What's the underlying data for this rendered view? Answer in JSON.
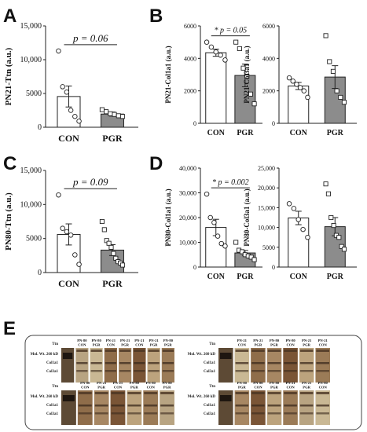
{
  "panel_letters": {
    "A": "A",
    "B": "B",
    "C": "C",
    "D": "D",
    "E": "E"
  },
  "chart_data": [
    {
      "id": "A",
      "type": "bar",
      "categories": [
        "CON",
        "PGR"
      ],
      "ylabel": "PN21-Ttn (a.u.)",
      "ylim": [
        0,
        15000
      ],
      "yticks": [
        0,
        5000,
        10000,
        15000
      ],
      "yticklabels": [
        "0",
        "5000",
        "10,000",
        "15,000"
      ],
      "values": [
        4550,
        1950
      ],
      "errors": [
        1550,
        300
      ],
      "points": [
        [
          11300,
          6000,
          5200,
          2500,
          1600,
          900
        ],
        [
          2600,
          2300,
          2000,
          1900,
          1700,
          1600
        ]
      ],
      "annotation": "p = 0.06",
      "annotation_prefix": ""
    },
    {
      "id": "B1",
      "type": "bar",
      "categories": [
        "CON",
        "PGR"
      ],
      "ylabel": "PN21-Col1a1 (a.u.)",
      "ylim": [
        0,
        6000
      ],
      "yticks": [
        0,
        2000,
        4000,
        6000
      ],
      "yticklabels": [
        "0",
        "2000",
        "4000",
        "6000"
      ],
      "values": [
        4350,
        2950
      ],
      "errors": [
        220,
        700
      ],
      "points": [
        [
          5000,
          4700,
          4400,
          4200,
          3900
        ],
        [
          5000,
          4600,
          3400,
          2900,
          1800,
          1200
        ]
      ],
      "annotation": "p = 0.05",
      "annotation_prefix": "*"
    },
    {
      "id": "B2",
      "type": "bar",
      "categories": [
        "CON",
        "PGR"
      ],
      "ylabel": "PN21-Col3a1 (a.u.)",
      "ylim": [
        0,
        6000
      ],
      "yticks": [
        0,
        2000,
        4000,
        6000
      ],
      "yticklabels": [
        "0",
        "2000",
        "4000",
        "6000"
      ],
      "values": [
        2300,
        2850
      ],
      "errors": [
        220,
        700
      ],
      "points": [
        [
          2800,
          2600,
          2400,
          2200,
          2000,
          1600
        ],
        [
          5400,
          3800,
          3200,
          2000,
          1600,
          1300
        ]
      ],
      "annotation": "",
      "annotation_prefix": ""
    },
    {
      "id": "C",
      "type": "bar",
      "categories": [
        "CON",
        "PGR"
      ],
      "ylabel": "PN80-Ttn (a.u.)",
      "ylim": [
        0,
        15000
      ],
      "yticks": [
        0,
        5000,
        10000,
        15000
      ],
      "yticklabels": [
        "0",
        "5000",
        "10,000",
        "15,000"
      ],
      "values": [
        5600,
        3300
      ],
      "errors": [
        1550,
        800
      ],
      "points": [
        [
          11400,
          6500,
          6000,
          5500,
          2600,
          1200
        ],
        [
          7500,
          6300,
          4700,
          4300,
          3700,
          2800,
          2100,
          1600,
          1400,
          1100
        ]
      ],
      "annotation": "p = 0.09",
      "annotation_prefix": ""
    },
    {
      "id": "D1",
      "type": "bar",
      "categories": [
        "CON",
        "PGR"
      ],
      "ylabel": "PN80-Col1a1 (a.u.)",
      "ylim": [
        0,
        40000
      ],
      "yticks": [
        0,
        10000,
        20000,
        30000,
        40000
      ],
      "yticklabels": [
        "0",
        "10,000",
        "20,000",
        "30,000",
        "40,000"
      ],
      "values": [
        16000,
        5700
      ],
      "errors": [
        3300,
        1000
      ],
      "points": [
        [
          29500,
          20000,
          18000,
          12500,
          9500,
          8500
        ],
        [
          10000,
          6800,
          6200,
          5000,
          4500,
          4000,
          3000
        ]
      ],
      "annotation": "p = 0.002",
      "annotation_prefix": "*"
    },
    {
      "id": "D2",
      "type": "bar",
      "categories": [
        "CON",
        "PGR"
      ],
      "ylabel": "PN80-Col3a1 (a.u.)",
      "ylim": [
        0,
        25000
      ],
      "yticks": [
        0,
        5000,
        10000,
        15000,
        20000,
        25000
      ],
      "yticklabels": [
        "0",
        "5000",
        "10,000",
        "15,000",
        "20,000",
        "25,000"
      ],
      "values": [
        12400,
        10200
      ],
      "errors": [
        1700,
        2300
      ],
      "points": [
        [
          16000,
          14800,
          12000,
          9500,
          7500
        ],
        [
          21000,
          18500,
          12500,
          10500,
          8000,
          7500,
          5200,
          4500
        ]
      ],
      "annotation": "",
      "annotation_prefix": ""
    }
  ],
  "gel": {
    "row_labels": {
      "ttn": "Ttn",
      "mw": "Mol. Wt. 260 kD",
      "col1": "Col1a1",
      "col3": "Col3a1"
    },
    "blocks": [
      {
        "labels": [
          [
            "PN-80",
            "CON"
          ],
          [
            "PN-80",
            "PGR"
          ],
          [
            "PN-21",
            "CON"
          ],
          [
            "PN-21",
            "PGR"
          ],
          [
            "PN-21",
            "CON"
          ],
          [
            "PN-21",
            "PGR"
          ],
          [
            "PN-80",
            "PGR"
          ]
        ]
      },
      {
        "labels": [
          [
            "PN-21",
            "CON"
          ],
          [
            "PN-21",
            "PGR"
          ],
          [
            "PN-80",
            "PGR"
          ],
          [
            "PN-80",
            "CON"
          ],
          [
            "PN-21",
            "PGR"
          ],
          [
            "PN-21",
            "CON"
          ]
        ]
      },
      {
        "labels": [
          [
            "PN-80",
            "CON"
          ],
          [
            "PN-21",
            "PGR"
          ],
          [
            "PN-21",
            "CON"
          ],
          [
            "PN-80",
            "PGR"
          ],
          [
            "PN-80",
            "CON"
          ],
          [
            "PN-80",
            "PGR"
          ]
        ]
      },
      {
        "labels": [
          [
            "PN-80",
            "PGR"
          ],
          [
            "PN-80",
            "CON"
          ],
          [
            "PN-80",
            "PGR"
          ],
          [
            "PN-21",
            "CON"
          ],
          [
            "PN-21",
            "PGR"
          ],
          [
            "PN-80",
            "CON"
          ]
        ]
      }
    ]
  }
}
